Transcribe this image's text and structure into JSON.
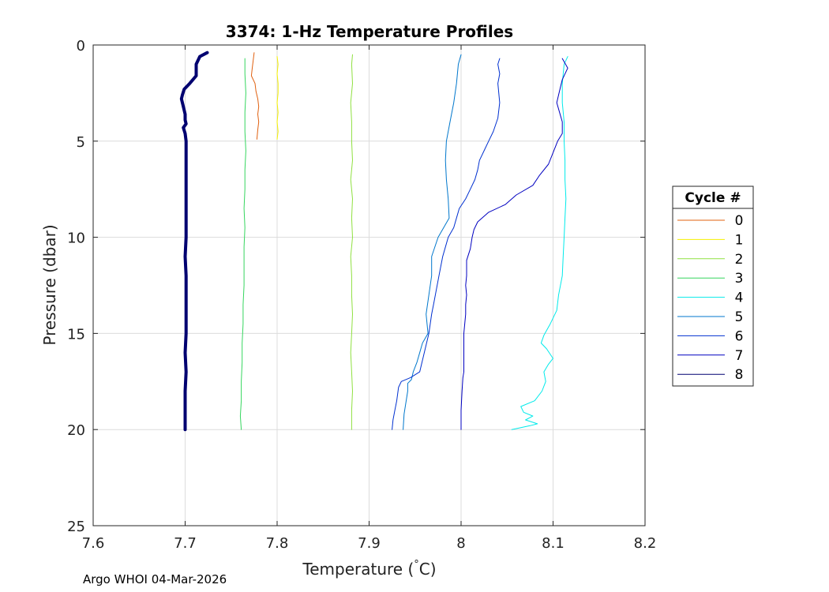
{
  "chart_data": {
    "type": "line",
    "title": "3374: 1-Hz Temperature Profiles",
    "xlabel_main": "Temperature (",
    "xlabel_deg": "°",
    "xlabel_unit": "C)",
    "ylabel": "Pressure (dbar)",
    "xlim": [
      7.6,
      8.2
    ],
    "ylim": [
      0,
      25
    ],
    "y_reversed": true,
    "xticks": [
      "7.6",
      "7.7",
      "7.8",
      "7.9",
      "8",
      "8.1",
      "8.2"
    ],
    "yticks": [
      "0",
      "5",
      "10",
      "15",
      "20",
      "25"
    ],
    "grid": true,
    "legend": {
      "title": "Cycle #",
      "placement": "outside-right"
    },
    "series": [
      {
        "name": "0",
        "color": "#e0600f",
        "width": 1,
        "points": [
          [
            7.775,
            0.4
          ],
          [
            7.774,
            0.8
          ],
          [
            7.773,
            1.2
          ],
          [
            7.772,
            1.6
          ],
          [
            7.776,
            2.0
          ],
          [
            7.777,
            2.4
          ],
          [
            7.779,
            2.8
          ],
          [
            7.78,
            3.2
          ],
          [
            7.779,
            3.6
          ],
          [
            7.78,
            4.0
          ],
          [
            7.779,
            4.4
          ],
          [
            7.778,
            4.9
          ]
        ]
      },
      {
        "name": "1",
        "color": "#f5f000",
        "width": 1,
        "points": [
          [
            7.8,
            0.6
          ],
          [
            7.801,
            1.0
          ],
          [
            7.8,
            1.5
          ],
          [
            7.801,
            2.0
          ],
          [
            7.801,
            2.5
          ],
          [
            7.8,
            3.0
          ],
          [
            7.801,
            3.5
          ],
          [
            7.8,
            4.0
          ],
          [
            7.801,
            4.5
          ],
          [
            7.8,
            4.9
          ]
        ]
      },
      {
        "name": "2",
        "color": "#8fe040",
        "width": 1,
        "points": [
          [
            7.882,
            0.5
          ],
          [
            7.881,
            1.0
          ],
          [
            7.882,
            2.0
          ],
          [
            7.88,
            3.0
          ],
          [
            7.881,
            4.0
          ],
          [
            7.881,
            5.0
          ],
          [
            7.882,
            6.0
          ],
          [
            7.88,
            7.0
          ],
          [
            7.882,
            8.0
          ],
          [
            7.881,
            9.0
          ],
          [
            7.882,
            10.0
          ],
          [
            7.88,
            11.0
          ],
          [
            7.881,
            12.0
          ],
          [
            7.881,
            13.0
          ],
          [
            7.882,
            14.0
          ],
          [
            7.881,
            15.0
          ],
          [
            7.88,
            16.0
          ],
          [
            7.881,
            17.0
          ],
          [
            7.882,
            18.0
          ],
          [
            7.881,
            19.0
          ],
          [
            7.881,
            20.0
          ]
        ]
      },
      {
        "name": "3",
        "color": "#36d65f",
        "width": 1,
        "points": [
          [
            7.765,
            0.7
          ],
          [
            7.765,
            1.5
          ],
          [
            7.766,
            2.5
          ],
          [
            7.765,
            3.5
          ],
          [
            7.765,
            4.5
          ],
          [
            7.766,
            5.5
          ],
          [
            7.765,
            6.5
          ],
          [
            7.765,
            7.5
          ],
          [
            7.764,
            8.5
          ],
          [
            7.765,
            9.5
          ],
          [
            7.764,
            10.5
          ],
          [
            7.764,
            11.5
          ],
          [
            7.764,
            12.5
          ],
          [
            7.763,
            13.5
          ],
          [
            7.763,
            14.5
          ],
          [
            7.762,
            15.5
          ],
          [
            7.762,
            16.5
          ],
          [
            7.761,
            17.5
          ],
          [
            7.761,
            18.5
          ],
          [
            7.76,
            19.3
          ],
          [
            7.761,
            20.0
          ]
        ]
      },
      {
        "name": "4",
        "color": "#00eaea",
        "width": 1,
        "points": [
          [
            8.116,
            0.6
          ],
          [
            8.112,
            1.0
          ],
          [
            8.11,
            2.0
          ],
          [
            8.11,
            3.0
          ],
          [
            8.112,
            4.0
          ],
          [
            8.112,
            5.0
          ],
          [
            8.113,
            6.0
          ],
          [
            8.113,
            7.0
          ],
          [
            8.114,
            8.0
          ],
          [
            8.113,
            9.0
          ],
          [
            8.112,
            10.0
          ],
          [
            8.111,
            11.0
          ],
          [
            8.11,
            12.0
          ],
          [
            8.106,
            13.0
          ],
          [
            8.104,
            13.8
          ],
          [
            8.097,
            14.5
          ],
          [
            8.09,
            15.1
          ],
          [
            8.087,
            15.5
          ],
          [
            8.093,
            15.8
          ],
          [
            8.1,
            16.3
          ],
          [
            8.095,
            16.6
          ],
          [
            8.09,
            17.0
          ],
          [
            8.092,
            17.5
          ],
          [
            8.088,
            18.0
          ],
          [
            8.08,
            18.5
          ],
          [
            8.065,
            18.8
          ],
          [
            8.068,
            19.1
          ],
          [
            8.078,
            19.3
          ],
          [
            8.07,
            19.5
          ],
          [
            8.083,
            19.7
          ],
          [
            8.075,
            19.8
          ],
          [
            8.055,
            20.0
          ]
        ]
      },
      {
        "name": "5",
        "color": "#0077cc",
        "width": 1,
        "points": [
          [
            8.0,
            0.5
          ],
          [
            7.997,
            1.0
          ],
          [
            7.995,
            2.0
          ],
          [
            7.992,
            3.0
          ],
          [
            7.988,
            4.0
          ],
          [
            7.984,
            5.0
          ],
          [
            7.983,
            6.0
          ],
          [
            7.984,
            7.0
          ],
          [
            7.986,
            8.0
          ],
          [
            7.987,
            9.0
          ],
          [
            7.975,
            10.0
          ],
          [
            7.968,
            11.0
          ],
          [
            7.968,
            12.0
          ],
          [
            7.965,
            13.0
          ],
          [
            7.962,
            14.0
          ],
          [
            7.964,
            15.0
          ],
          [
            7.958,
            15.5
          ],
          [
            7.955,
            16.0
          ],
          [
            7.952,
            16.5
          ],
          [
            7.948,
            17.0
          ],
          [
            7.946,
            17.4
          ],
          [
            7.942,
            17.6
          ],
          [
            7.942,
            18.0
          ],
          [
            7.94,
            18.6
          ],
          [
            7.938,
            19.2
          ],
          [
            7.937,
            20.0
          ]
        ]
      },
      {
        "name": "6",
        "color": "#0030d0",
        "width": 1,
        "points": [
          [
            8.042,
            0.7
          ],
          [
            8.04,
            1.0
          ],
          [
            8.042,
            1.5
          ],
          [
            8.04,
            2.0
          ],
          [
            8.042,
            3.0
          ],
          [
            8.04,
            3.8
          ],
          [
            8.035,
            4.5
          ],
          [
            8.03,
            5.0
          ],
          [
            8.025,
            5.5
          ],
          [
            8.02,
            6.0
          ],
          [
            8.018,
            6.5
          ],
          [
            8.015,
            7.0
          ],
          [
            8.01,
            7.5
          ],
          [
            8.005,
            8.0
          ],
          [
            7.998,
            8.5
          ],
          [
            7.995,
            9.0
          ],
          [
            7.992,
            9.5
          ],
          [
            7.986,
            10.0
          ],
          [
            7.983,
            10.5
          ],
          [
            7.98,
            11.0
          ],
          [
            7.976,
            12.0
          ],
          [
            7.972,
            13.0
          ],
          [
            7.97,
            13.5
          ],
          [
            7.968,
            14.0
          ],
          [
            7.965,
            15.0
          ],
          [
            7.96,
            16.0
          ],
          [
            7.955,
            17.0
          ],
          [
            7.945,
            17.3
          ],
          [
            7.935,
            17.5
          ],
          [
            7.932,
            17.8
          ],
          [
            7.93,
            18.5
          ],
          [
            7.928,
            19.0
          ],
          [
            7.926,
            19.5
          ],
          [
            7.925,
            20.0
          ]
        ]
      },
      {
        "name": "7",
        "color": "#0000c0",
        "width": 1,
        "points": [
          [
            8.11,
            0.7
          ],
          [
            8.116,
            1.2
          ],
          [
            8.11,
            1.8
          ],
          [
            8.108,
            2.2
          ],
          [
            8.106,
            2.6
          ],
          [
            8.104,
            3.0
          ],
          [
            8.107,
            3.5
          ],
          [
            8.11,
            4.0
          ],
          [
            8.11,
            4.6
          ],
          [
            8.105,
            5.0
          ],
          [
            8.1,
            5.6
          ],
          [
            8.095,
            6.2
          ],
          [
            8.085,
            6.8
          ],
          [
            8.078,
            7.3
          ],
          [
            8.06,
            7.8
          ],
          [
            8.048,
            8.3
          ],
          [
            8.03,
            8.7
          ],
          [
            8.018,
            9.2
          ],
          [
            8.014,
            9.6
          ],
          [
            8.012,
            10.0
          ],
          [
            8.01,
            10.6
          ],
          [
            8.006,
            11.2
          ],
          [
            8.006,
            12.0
          ],
          [
            8.005,
            12.5
          ],
          [
            8.006,
            13.0
          ],
          [
            8.005,
            13.5
          ],
          [
            8.005,
            14.0
          ],
          [
            8.003,
            15.0
          ],
          [
            8.003,
            16.0
          ],
          [
            8.003,
            17.0
          ],
          [
            8.002,
            17.3
          ],
          [
            8.001,
            18.0
          ],
          [
            8.0,
            19.0
          ],
          [
            8.0,
            20.0
          ]
        ]
      },
      {
        "name": "8",
        "color": "#000070",
        "width": 4,
        "points": [
          [
            7.724,
            0.4
          ],
          [
            7.716,
            0.6
          ],
          [
            7.712,
            1.0
          ],
          [
            7.712,
            1.6
          ],
          [
            7.705,
            2.0
          ],
          [
            7.699,
            2.3
          ],
          [
            7.697,
            2.6
          ],
          [
            7.696,
            2.8
          ],
          [
            7.698,
            3.2
          ],
          [
            7.7,
            3.6
          ],
          [
            7.7,
            3.9
          ],
          [
            7.701,
            4.1
          ],
          [
            7.698,
            4.3
          ],
          [
            7.7,
            4.6
          ],
          [
            7.701,
            5.0
          ],
          [
            7.701,
            6.0
          ],
          [
            7.701,
            7.0
          ],
          [
            7.701,
            8.0
          ],
          [
            7.701,
            9.0
          ],
          [
            7.701,
            10.0
          ],
          [
            7.7,
            11.0
          ],
          [
            7.701,
            12.0
          ],
          [
            7.701,
            13.0
          ],
          [
            7.701,
            14.0
          ],
          [
            7.701,
            15.0
          ],
          [
            7.7,
            16.0
          ],
          [
            7.701,
            17.0
          ],
          [
            7.7,
            18.0
          ],
          [
            7.7,
            19.0
          ],
          [
            7.7,
            20.0
          ]
        ]
      }
    ]
  },
  "footer": {
    "credit": "Argo WHOI 04-Mar-2026"
  }
}
